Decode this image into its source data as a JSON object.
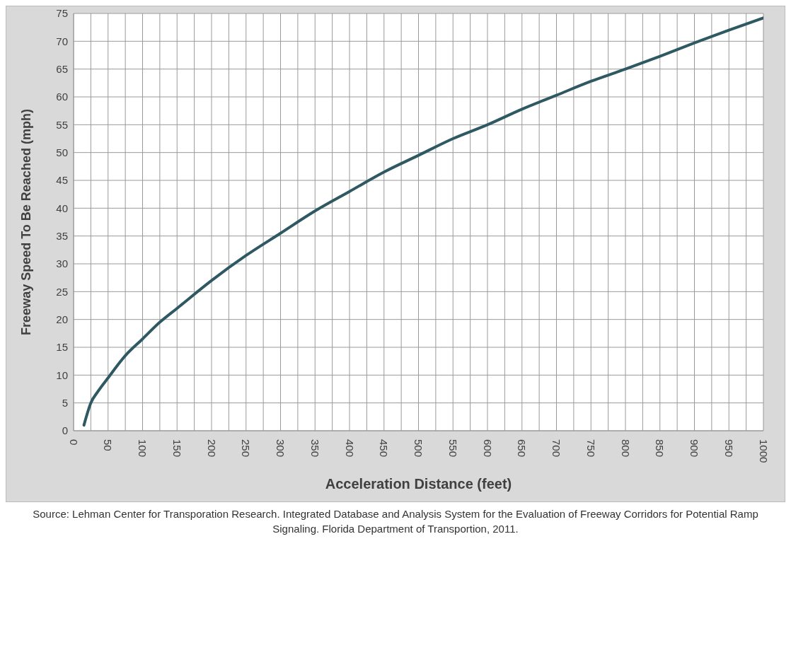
{
  "chart_data": {
    "type": "line",
    "xlabel": "Acceleration Distance (feet)",
    "ylabel": "Freeway Speed To Be Reached (mph)",
    "x": [
      15,
      25,
      35,
      50,
      75,
      100,
      125,
      150,
      200,
      250,
      300,
      350,
      400,
      450,
      500,
      550,
      600,
      650,
      700,
      750,
      800,
      850,
      900,
      950,
      1000
    ],
    "series": [
      {
        "color": "#2f5962",
        "values": [
          1,
          5,
          7,
          9.5,
          13.5,
          16.5,
          19.5,
          22,
          27,
          31.5,
          35.5,
          39.5,
          43,
          46.5,
          49.5,
          52.5,
          55,
          57.8,
          60.3,
          62.8,
          65,
          67.3,
          69.7,
          72,
          74.2
        ]
      }
    ],
    "xlim": [
      0,
      1000
    ],
    "xticks": [
      0,
      {
        "value": 25,
        "label": null
      },
      50,
      {
        "value": 75,
        "label": null
      },
      100,
      {
        "value": 125,
        "label": null
      },
      150,
      {
        "value": 175,
        "label": null
      },
      200,
      {
        "value": 225,
        "label": null
      },
      250,
      {
        "value": 275,
        "label": null
      },
      300,
      {
        "value": 325,
        "label": null
      },
      350,
      {
        "value": 375,
        "label": null
      },
      400,
      {
        "value": 425,
        "label": null
      },
      450,
      {
        "value": 475,
        "label": null
      },
      500,
      {
        "value": 525,
        "label": null
      },
      550,
      {
        "value": 575,
        "label": null
      },
      600,
      {
        "value": 625,
        "label": null
      },
      650,
      {
        "value": 675,
        "label": null
      },
      700,
      {
        "value": 725,
        "label": null
      },
      750,
      {
        "value": 775,
        "label": null
      },
      800,
      {
        "value": 825,
        "label": null
      },
      850,
      {
        "value": 875,
        "label": null
      },
      900,
      {
        "value": 925,
        "label": null
      },
      950,
      {
        "value": 975,
        "label": null
      },
      1000
    ],
    "ylim": [
      0,
      75
    ],
    "yticks": [
      0,
      5,
      10,
      15,
      20,
      25,
      30,
      35,
      40,
      45,
      50,
      55,
      60,
      65,
      70,
      75
    ],
    "grid": true,
    "legend": false,
    "marker": "none",
    "line_style": "solid",
    "annotations": [
      "Source: Lehman Center for Transporation Research. Integrated Database and Analysis System for the Evaluation of Freeway Corridors for Potential Ramp Signaling. Florida Department of Transportion, 2011."
    ]
  }
}
